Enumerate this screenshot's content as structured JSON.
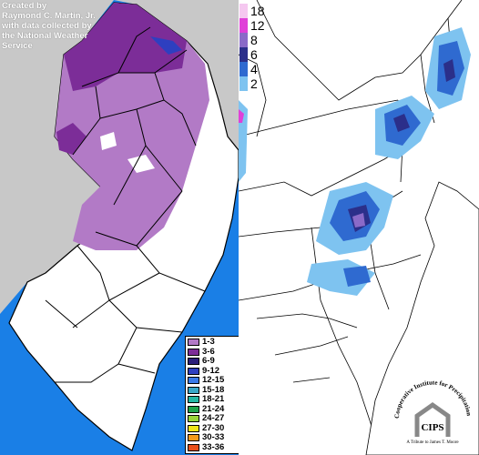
{
  "credit": {
    "lines": [
      "Created by",
      "Raymond C. Martin, Jr.",
      "with data collected by",
      "the National Weather",
      "Service"
    ]
  },
  "nj_legend": {
    "entries": [
      {
        "label": "1-3",
        "color": "#b27ac6"
      },
      {
        "label": "3-6",
        "color": "#7c2d98"
      },
      {
        "label": "6-9",
        "color": "#2b1f7a"
      },
      {
        "label": "9-12",
        "color": "#2e3fc0"
      },
      {
        "label": "12-15",
        "color": "#3a7ae8"
      },
      {
        "label": "15-18",
        "color": "#3aa8c8"
      },
      {
        "label": "18-21",
        "color": "#25b8a5"
      },
      {
        "label": "21-24",
        "color": "#1fa34a"
      },
      {
        "label": "24-27",
        "color": "#9ad63a"
      },
      {
        "label": "27-30",
        "color": "#f2e61a"
      },
      {
        "label": "30-33",
        "color": "#f59a1a"
      },
      {
        "label": "33-36",
        "color": "#e8501a"
      }
    ]
  },
  "regional_colorbar": {
    "entries": [
      {
        "label": "18",
        "color": "#f5c8f0"
      },
      {
        "label": "12",
        "color": "#e040d8"
      },
      {
        "label": "8",
        "color": "#8a6ac8"
      },
      {
        "label": "6",
        "color": "#2b2f8a"
      },
      {
        "label": "4",
        "color": "#2f6ad0"
      },
      {
        "label": "2",
        "color": "#7ec3f0"
      }
    ]
  },
  "logo": {
    "text": "Cooperative Institute for Precipitation Systems",
    "abbr": "CIPS",
    "tribute": "A Tribute to James T. Moore"
  },
  "colors": {
    "ocean": "#1a7fe6",
    "land_gray": "#c8c8c8",
    "snow_light": "#b27ac6",
    "snow_mid": "#7c2d98",
    "snow_dark": "#2b1f7a"
  }
}
